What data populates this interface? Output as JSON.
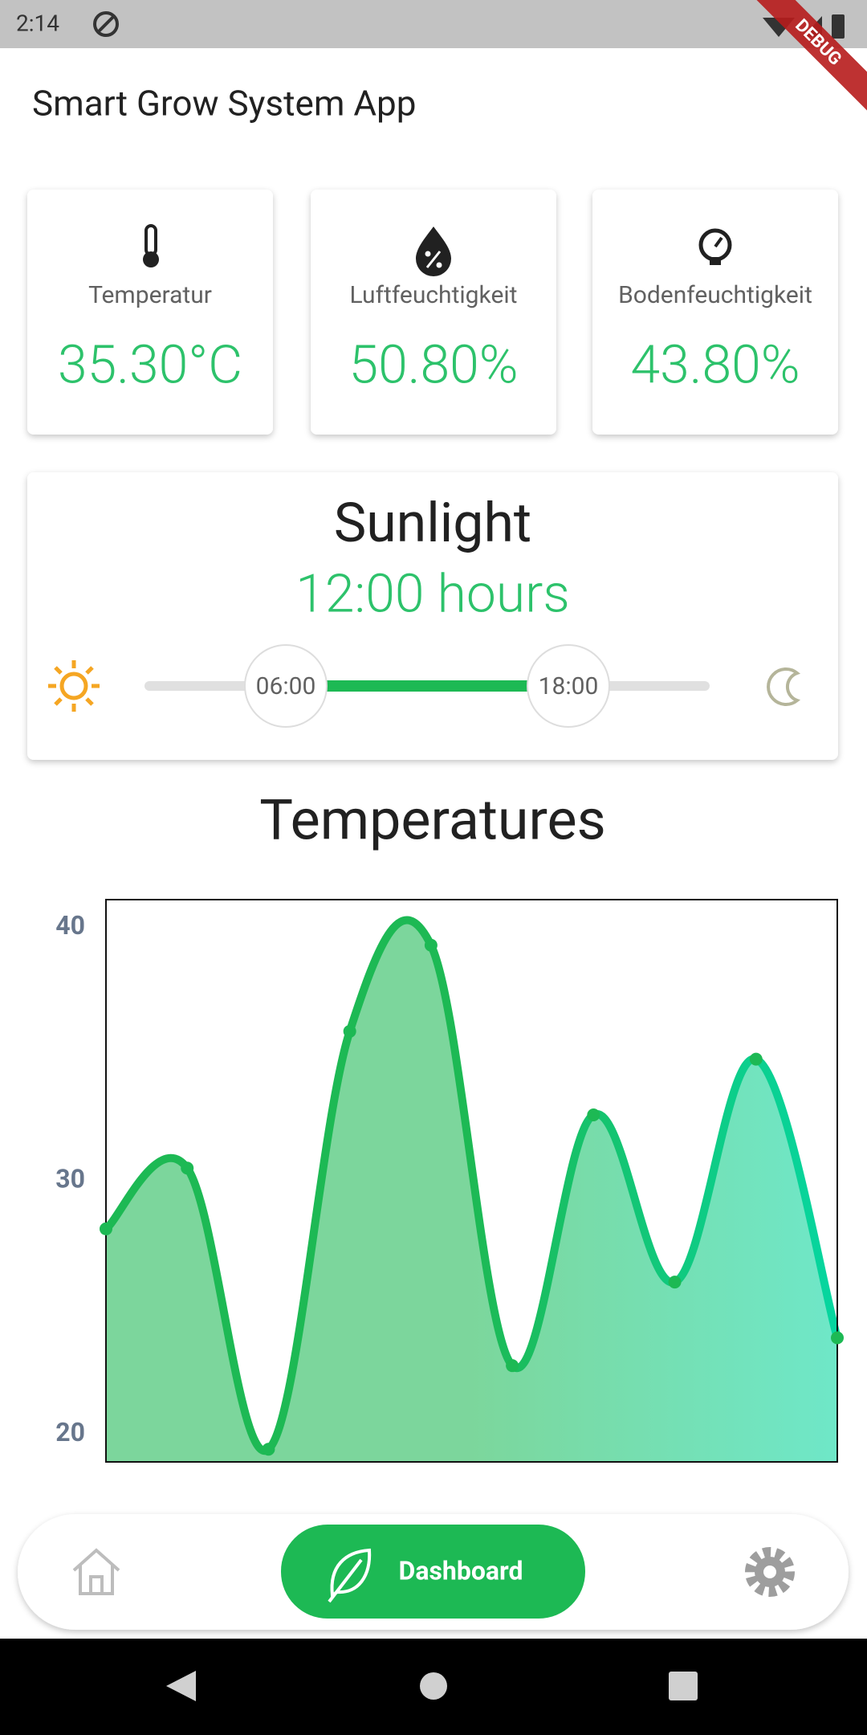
{
  "status_bar": {
    "time": "2:14"
  },
  "debug_banner": "DEBUG",
  "app_bar": {
    "title": "Smart Grow System App"
  },
  "sensors": [
    {
      "label": "Temperatur",
      "value": "35.30°C"
    },
    {
      "label": "Luftfeuchtigkeit",
      "value": "50.80%"
    },
    {
      "label": "Bodenfeuchtigkeit",
      "value": "43.80%"
    }
  ],
  "sunlight": {
    "title": "Sunlight",
    "duration": "12:00 hours",
    "start": "06:00",
    "end": "18:00"
  },
  "nav": {
    "active": "Dashboard"
  },
  "chart_data": {
    "type": "line",
    "title": "Temperatures",
    "x": [
      0,
      1,
      2,
      3,
      4,
      5,
      6,
      7,
      8,
      9
    ],
    "xlim": [
      0,
      9
    ],
    "series": [
      {
        "color": "#1db954",
        "values": [
          28.1,
          30.5,
          19.4,
          35.9,
          39.3,
          22.7,
          32.6,
          26.0,
          34.8,
          23.8
        ]
      }
    ],
    "color_end": "#06d6a0",
    "ylim": [
      18.9,
      41.1
    ],
    "yticks": [
      20,
      30,
      40
    ],
    "grid": false
  }
}
